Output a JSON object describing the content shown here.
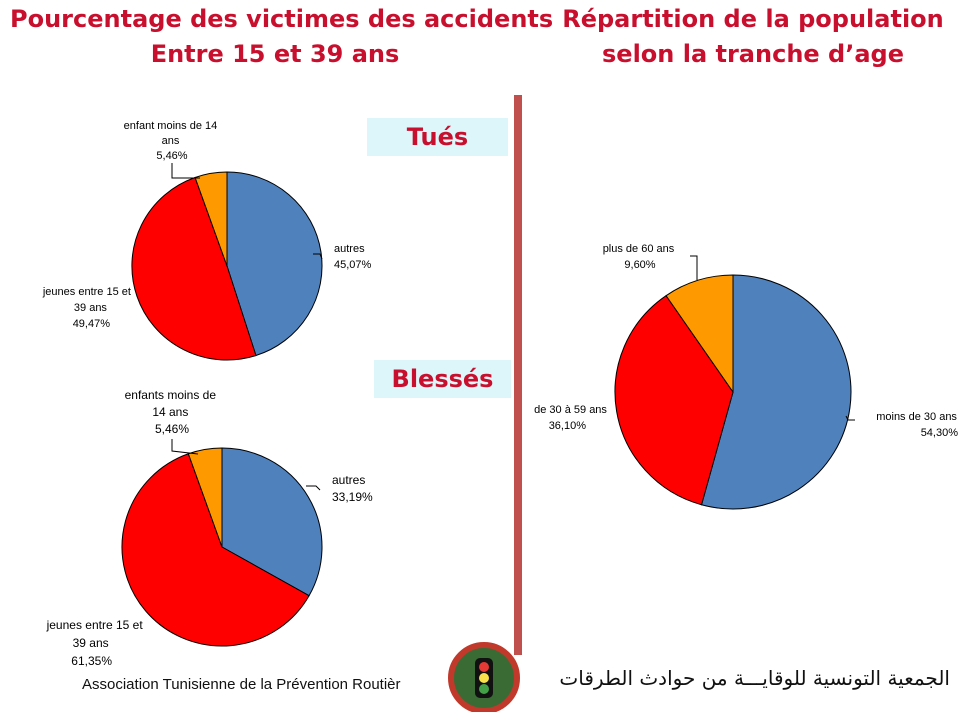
{
  "header": {
    "left_title_line1": "Pourcentage des victimes des accidents",
    "left_title_line2": "Entre 15 et 39 ans",
    "right_title_line1": "Répartition de la population",
    "right_title_line2": "selon la tranche d’age"
  },
  "tags": {
    "tues": "Tués",
    "blesses": "Blessés"
  },
  "footer": {
    "left": "Association Tunisienne de la Prévention Routièr",
    "right": "الجمعية التونسية للوقايـــة من حوادث الطرقات"
  },
  "colors": {
    "blue": "#4f81bd",
    "red": "#ff0000",
    "orange": "#ff9900",
    "title_red": "#c8102e",
    "divider": "#c0504d"
  },
  "chart_data": [
    {
      "type": "pie",
      "title": "Tués",
      "slices": [
        {
          "label": "autres",
          "value": 45.07,
          "value_label": "45,07%",
          "color": "#4f81bd"
        },
        {
          "label": "jeunes entre 15 et 39 ans",
          "value": 49.47,
          "value_label": "49,47%",
          "color": "#ff0000"
        },
        {
          "label": "enfant moins de 14 ans",
          "value": 5.46,
          "value_label": "5,46%",
          "color": "#ff9900"
        }
      ]
    },
    {
      "type": "pie",
      "title": "Blessés",
      "slices": [
        {
          "label": "autres",
          "value": 33.19,
          "value_label": "33,19%",
          "color": "#4f81bd"
        },
        {
          "label": "jeunes entre 15 et 39 ans",
          "value": 61.35,
          "value_label": "61,35%",
          "color": "#ff0000"
        },
        {
          "label": "enfants moins de 14 ans",
          "value": 5.46,
          "value_label": "5,46%",
          "color": "#ff9900"
        }
      ]
    },
    {
      "type": "pie",
      "title": "Répartition de la population selon la tranche d’age",
      "slices": [
        {
          "label": "moins de 30 ans",
          "value": 54.3,
          "value_label": "54,30%",
          "color": "#4f81bd"
        },
        {
          "label": "de 30 à 59 ans",
          "value": 36.1,
          "value_label": "36,10%",
          "color": "#ff0000"
        },
        {
          "label": "plus de 60 ans",
          "value": 9.6,
          "value_label": "9,60%",
          "color": "#ff9900"
        }
      ]
    }
  ]
}
